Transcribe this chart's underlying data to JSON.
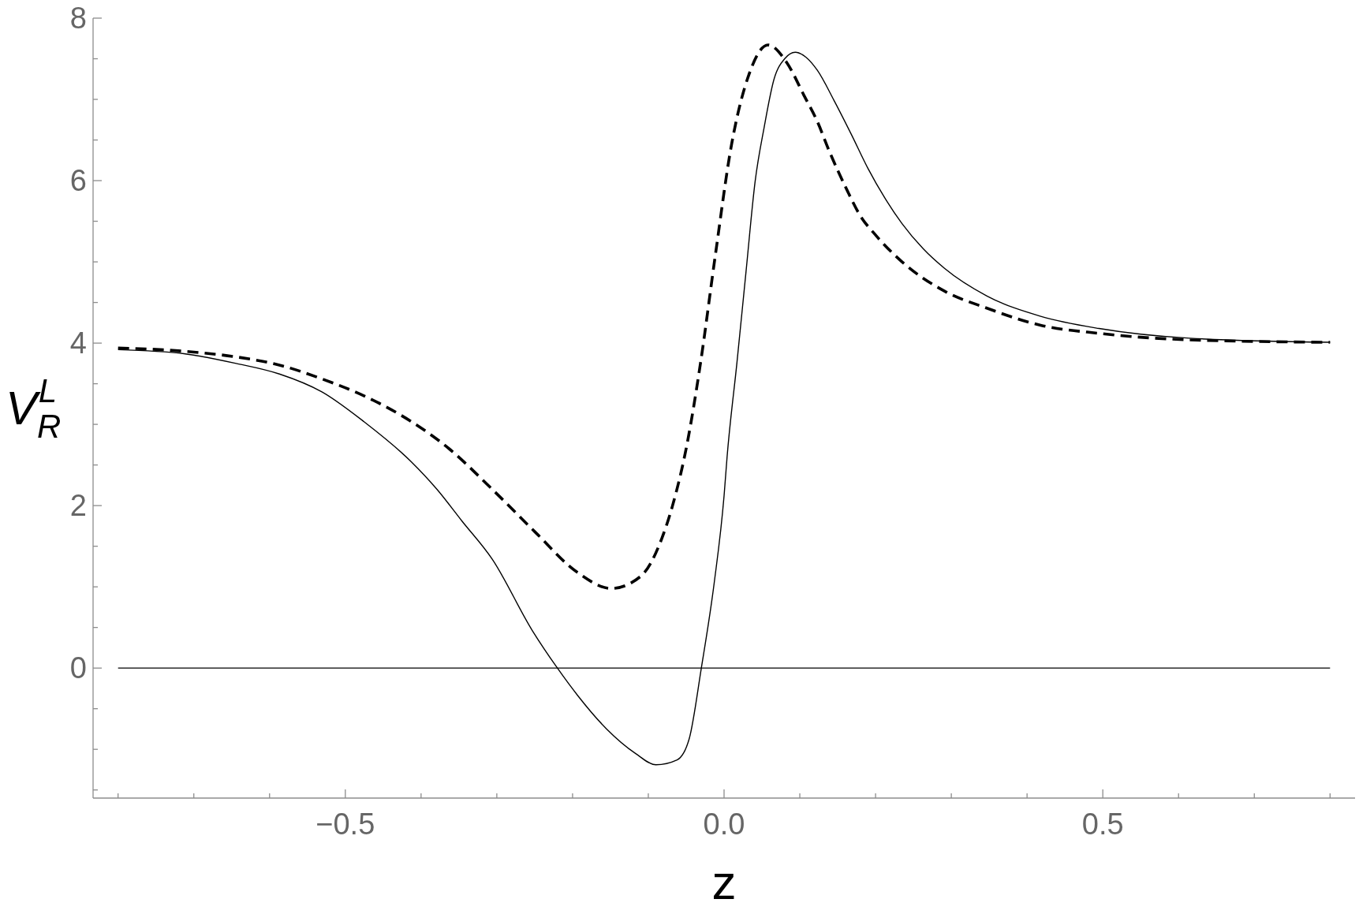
{
  "chart_data": {
    "type": "line",
    "xlabel": "z",
    "ylabel": "V$_{R}$$^{L}$",
    "xlim": [
      -0.833,
      0.833
    ],
    "ylim": [
      -1.6,
      8
    ],
    "xticks": [
      {
        "value": -0.8,
        "label": null
      },
      {
        "value": -0.7,
        "label": null
      },
      {
        "value": -0.6,
        "label": null
      },
      {
        "value": -0.5,
        "label": "−0.5"
      },
      {
        "value": -0.4,
        "label": null
      },
      {
        "value": -0.3,
        "label": null
      },
      {
        "value": -0.2,
        "label": null
      },
      {
        "value": -0.1,
        "label": null
      },
      {
        "value": 0,
        "label": "0.0"
      },
      {
        "value": 0.1,
        "label": null
      },
      {
        "value": 0.2,
        "label": null
      },
      {
        "value": 0.3,
        "label": null
      },
      {
        "value": 0.4,
        "label": null
      },
      0.5,
      {
        "value": 0.6,
        "label": null
      },
      {
        "value": 0.7,
        "label": null
      },
      {
        "value": 0.8,
        "label": null
      }
    ],
    "yticks": [
      {
        "value": -1.5,
        "label": null
      },
      {
        "value": -1,
        "label": null
      },
      {
        "value": -0.5,
        "label": null
      },
      0,
      {
        "value": 0.5,
        "label": null
      },
      {
        "value": 1,
        "label": null
      },
      {
        "value": 1.5,
        "label": null
      },
      2,
      {
        "value": 2.5,
        "label": null
      },
      {
        "value": 3,
        "label": null
      },
      {
        "value": 3.5,
        "label": null
      },
      4,
      {
        "value": 4.5,
        "label": null
      },
      {
        "value": 5,
        "label": null
      },
      {
        "value": 5.5,
        "label": null
      },
      6,
      {
        "value": 6.5,
        "label": null
      },
      {
        "value": 7,
        "label": null
      },
      {
        "value": 7.5,
        "label": null
      },
      8
    ],
    "series": [
      {
        "color": "#000000",
        "line_style": "solid",
        "x": [
          -0.8,
          -0.713,
          -0.644,
          -0.587,
          -0.531,
          -0.475,
          -0.413,
          -0.379,
          -0.346,
          -0.306,
          -0.253,
          -0.22,
          -0.193,
          -0.155,
          -0.117,
          -0.09,
          -0.062,
          -0.046,
          -0.03,
          -0.013,
          0,
          0.004,
          0.017,
          0.029,
          0.041,
          0.053,
          0.066,
          0.08,
          0.094,
          0.108,
          0.123,
          0.145,
          0.168,
          0.19,
          0.212,
          0.235,
          0.263,
          0.291,
          0.347,
          0.418,
          0.495,
          0.615,
          0.8
        ],
        "values": [
          3.92,
          3.87,
          3.75,
          3.62,
          3.4,
          3.03,
          2.54,
          2.2,
          1.81,
          1.34,
          0.46,
          0,
          -0.34,
          -0.75,
          -1.05,
          -1.19,
          -1.13,
          -0.87,
          0,
          1.05,
          2.12,
          2.6,
          3.76,
          4.88,
          5.99,
          6.66,
          7.25,
          7.5,
          7.58,
          7.52,
          7.36,
          6.99,
          6.57,
          6.15,
          5.79,
          5.47,
          5.16,
          4.92,
          4.58,
          4.33,
          4.18,
          4.06,
          4.01
        ]
      },
      {
        "color": "#000000",
        "line_style": "dashed",
        "x": [
          -0.8,
          -0.713,
          -0.644,
          -0.587,
          -0.531,
          -0.475,
          -0.419,
          -0.363,
          -0.306,
          -0.25,
          -0.194,
          -0.149,
          -0.11,
          -0.082,
          -0.068,
          -0.049,
          -0.031,
          -0.012,
          0.01,
          0.033,
          0.058,
          0.083,
          0.106,
          0.123,
          0.139,
          0.162,
          0.179,
          0.201,
          0.235,
          0.291,
          0.347,
          0.418,
          0.495,
          0.615,
          0.8
        ],
        "values": [
          3.94,
          3.9,
          3.83,
          3.73,
          3.56,
          3.35,
          3.07,
          2.7,
          2.2,
          1.68,
          1.18,
          0.98,
          1.13,
          1.6,
          2,
          2.75,
          3.76,
          5.05,
          6.45,
          7.31,
          7.67,
          7.45,
          7.04,
          6.73,
          6.36,
          5.89,
          5.58,
          5.32,
          5,
          4.64,
          4.43,
          4.22,
          4.12,
          4.04,
          4.01
        ]
      },
      {
        "color": "#000000",
        "line_style": "solid",
        "x": [
          -0.8,
          0.8
        ],
        "values": [
          0,
          0
        ]
      }
    ]
  }
}
